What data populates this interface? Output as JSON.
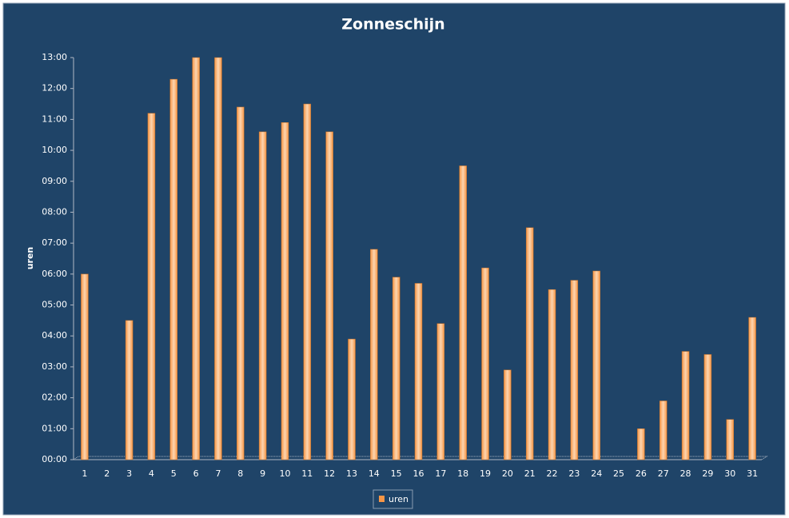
{
  "chart_data": {
    "type": "bar",
    "title": "Zonneschijn",
    "y_label": "uren",
    "categories": [
      "1",
      "2",
      "3",
      "4",
      "5",
      "6",
      "7",
      "8",
      "9",
      "10",
      "11",
      "12",
      "13",
      "14",
      "15",
      "16",
      "17",
      "18",
      "19",
      "20",
      "21",
      "22",
      "23",
      "24",
      "25",
      "26",
      "27",
      "28",
      "29",
      "30",
      "31"
    ],
    "series": [
      {
        "name": "uren",
        "color": "#f79646",
        "values": [
          6.0,
          0,
          4.5,
          11.2,
          12.3,
          13.0,
          13.0,
          11.4,
          10.6,
          10.9,
          11.5,
          10.6,
          3.9,
          6.8,
          5.9,
          5.7,
          4.4,
          9.5,
          6.2,
          2.9,
          7.5,
          5.5,
          5.8,
          6.1,
          0,
          1.0,
          1.9,
          3.5,
          3.4,
          1.3,
          4.6
        ]
      }
    ],
    "ylim": [
      0,
      13
    ],
    "yticks": [
      {
        "value": 0,
        "label": "00:00"
      },
      {
        "value": 1,
        "label": "01:00"
      },
      {
        "value": 2,
        "label": "02:00"
      },
      {
        "value": 3,
        "label": "03:00"
      },
      {
        "value": 4,
        "label": "04:00"
      },
      {
        "value": 5,
        "label": "05:00"
      },
      {
        "value": 6,
        "label": "06:00"
      },
      {
        "value": 7,
        "label": "07:00"
      },
      {
        "value": 8,
        "label": "08:00"
      },
      {
        "value": 9,
        "label": "09:00"
      },
      {
        "value": 10,
        "label": "10:00"
      },
      {
        "value": 11,
        "label": "11:00"
      },
      {
        "value": 12,
        "label": "12:00"
      },
      {
        "value": 13,
        "label": "13:00"
      }
    ],
    "legend": "bottom"
  }
}
